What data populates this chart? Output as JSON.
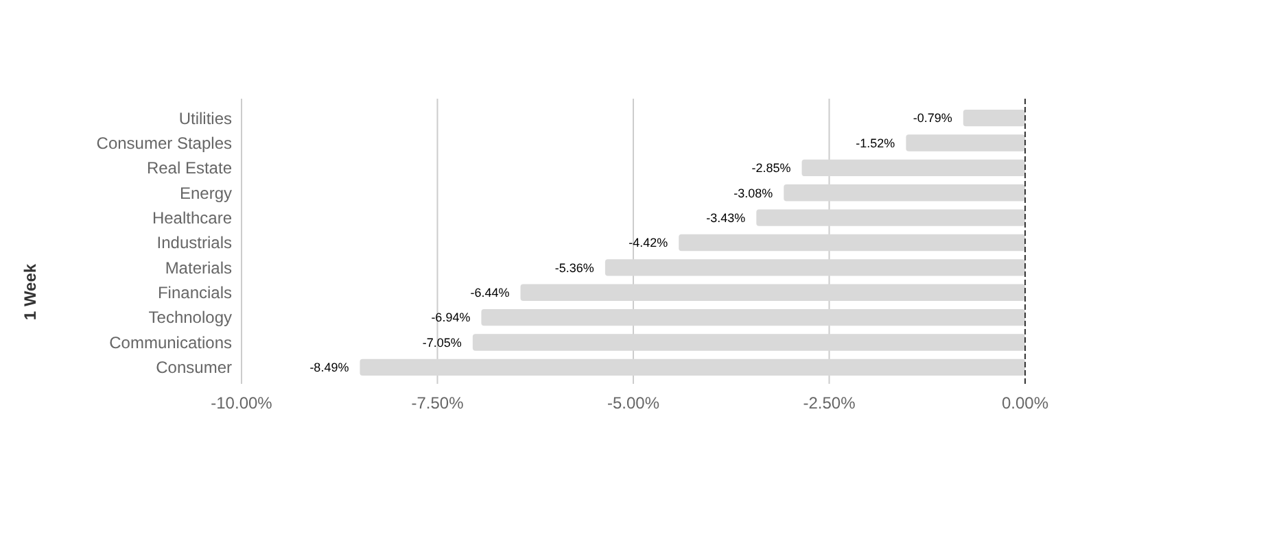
{
  "chart_data": {
    "type": "bar",
    "orientation": "horizontal",
    "ylabel": "1 Week",
    "categories": [
      "Utilities",
      "Consumer Staples",
      "Real Estate",
      "Energy",
      "Healthcare",
      "Industrials",
      "Materials",
      "Financials",
      "Technology",
      "Communications",
      "Consumer"
    ],
    "values": [
      -0.79,
      -1.52,
      -2.85,
      -3.08,
      -3.43,
      -4.42,
      -5.36,
      -6.44,
      -6.94,
      -7.05,
      -8.49
    ],
    "value_labels": [
      "-0.79%",
      "-1.52%",
      "-2.85%",
      "-3.08%",
      "-3.43%",
      "-4.42%",
      "-5.36%",
      "-6.44%",
      "-6.94%",
      "-7.05%",
      "-8.49%"
    ],
    "color": "#d9d9d9",
    "xlim": [
      -10,
      0
    ],
    "xticks": [
      {
        "value": -10,
        "label": "-10.00%"
      },
      {
        "value": -7.5,
        "label": "-7.50%"
      },
      {
        "value": -5,
        "label": "-5.00%"
      },
      {
        "value": -2.5,
        "label": "-2.50%"
      },
      {
        "value": 0,
        "label": "0.00%"
      }
    ],
    "grid": "x"
  }
}
